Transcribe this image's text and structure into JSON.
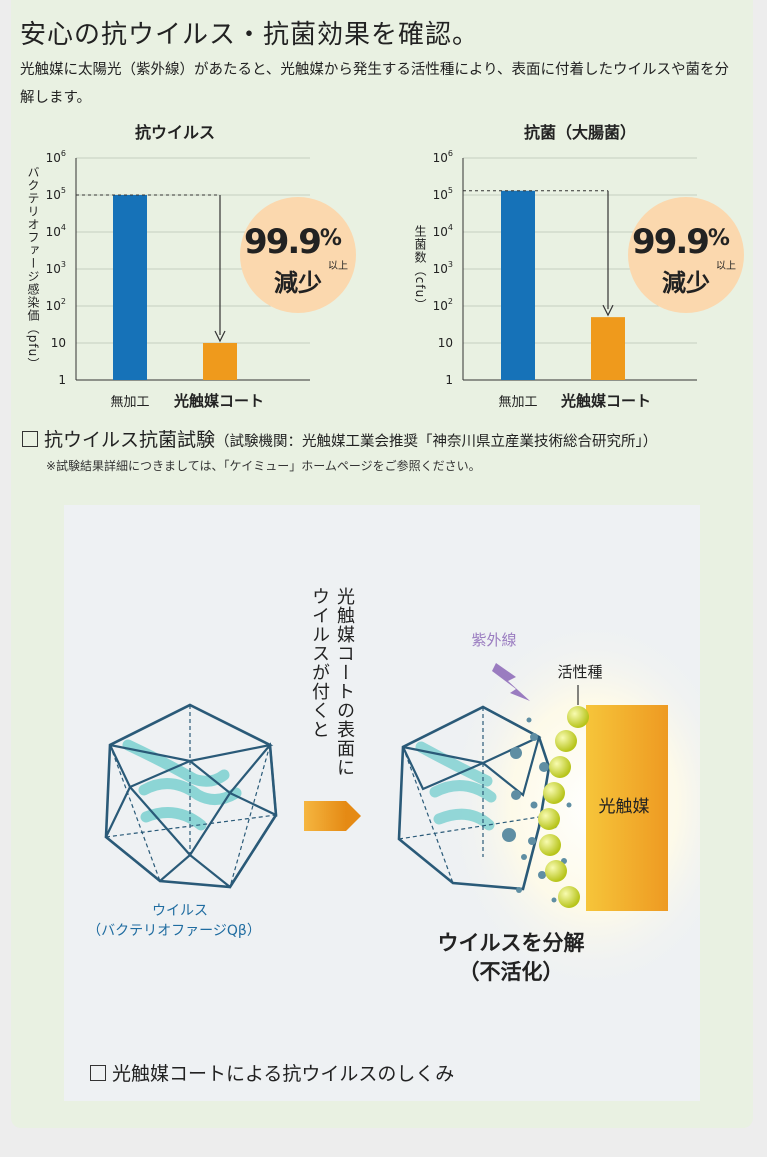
{
  "title": "安心の抗ウイルス・抗菌効果を確認。",
  "intro": "光触媒に太陽光（紫外線）があたると、光触媒から発生する活性種により、表面に付着したウイルスや菌を分解します。",
  "chart_data": [
    {
      "type": "bar",
      "title": "抗ウイルス",
      "ylabel": "バクテリオファージ感染価（pfu）",
      "yscale": "log",
      "ylim": [
        1,
        1000000
      ],
      "y_ticks": [
        {
          "value": 1000000,
          "base": "10",
          "exp": "6"
        },
        {
          "value": 100000,
          "base": "10",
          "exp": "5"
        },
        {
          "value": 10000,
          "base": "10",
          "exp": "4"
        },
        {
          "value": 1000,
          "base": "10",
          "exp": "3"
        },
        {
          "value": 100,
          "base": "10",
          "exp": "2"
        },
        {
          "value": 10,
          "base": "10",
          "exp": ""
        },
        {
          "value": 1,
          "base": "1",
          "exp": ""
        }
      ],
      "categories": [
        "無加工",
        "光触媒コート"
      ],
      "values": [
        100000,
        10
      ],
      "colors": [
        "#1672b8",
        "#ef9a1c"
      ],
      "badge": {
        "pct": "99.9",
        "unit": "%",
        "suffix": "以上",
        "label": "減少"
      }
    },
    {
      "type": "bar",
      "title": "抗菌（大腸菌）",
      "ylabel": "生菌数（cfu）",
      "yscale": "log",
      "ylim": [
        1,
        1000000
      ],
      "y_ticks": [
        {
          "value": 1000000,
          "base": "10",
          "exp": "6"
        },
        {
          "value": 100000,
          "base": "10",
          "exp": "5"
        },
        {
          "value": 10000,
          "base": "10",
          "exp": "4"
        },
        {
          "value": 1000,
          "base": "10",
          "exp": "3"
        },
        {
          "value": 100,
          "base": "10",
          "exp": "2"
        },
        {
          "value": 10,
          "base": "10",
          "exp": ""
        },
        {
          "value": 1,
          "base": "1",
          "exp": ""
        }
      ],
      "categories": [
        "無加工",
        "光触媒コート"
      ],
      "values": [
        130000,
        50
      ],
      "colors": [
        "#1672b8",
        "#ef9a1c"
      ],
      "badge": {
        "pct": "99.9",
        "unit": "%",
        "suffix": "以上",
        "label": "減少"
      }
    }
  ],
  "test": {
    "title": "抗ウイルス抗菌試験",
    "detail": "（試験機関：光触媒工業会推奨「神奈川県立産業技術総合研究所」）",
    "note": "※試験結果詳細につきましては、「ケイミュー」ホームページをご参照ください。"
  },
  "mechanism": {
    "vertical_col1": "光触媒コートの表面に",
    "vertical_col2": "ウイルスが付くと",
    "virus_label_1": "ウイルス",
    "virus_label_2": "（バクテリオファージQβ）",
    "uv_label": "紫外線",
    "active_label": "活性種",
    "catalyst_label": "光触媒",
    "result_1": "ウイルスを分解",
    "result_2": "（不活化）",
    "caption": "光触媒コートによる抗ウイルスのしくみ"
  },
  "colors": {
    "blue_bar": "#1672b8",
    "orange_bar": "#ef9a1c",
    "badge_bg": "#fbd8ae",
    "virus_stroke": "#2a5a78",
    "virus_fill": "#7ad0cf",
    "uv": "#9a7cc0",
    "catalyst": "#f3a72a",
    "active_ball": "#d3de2a"
  }
}
